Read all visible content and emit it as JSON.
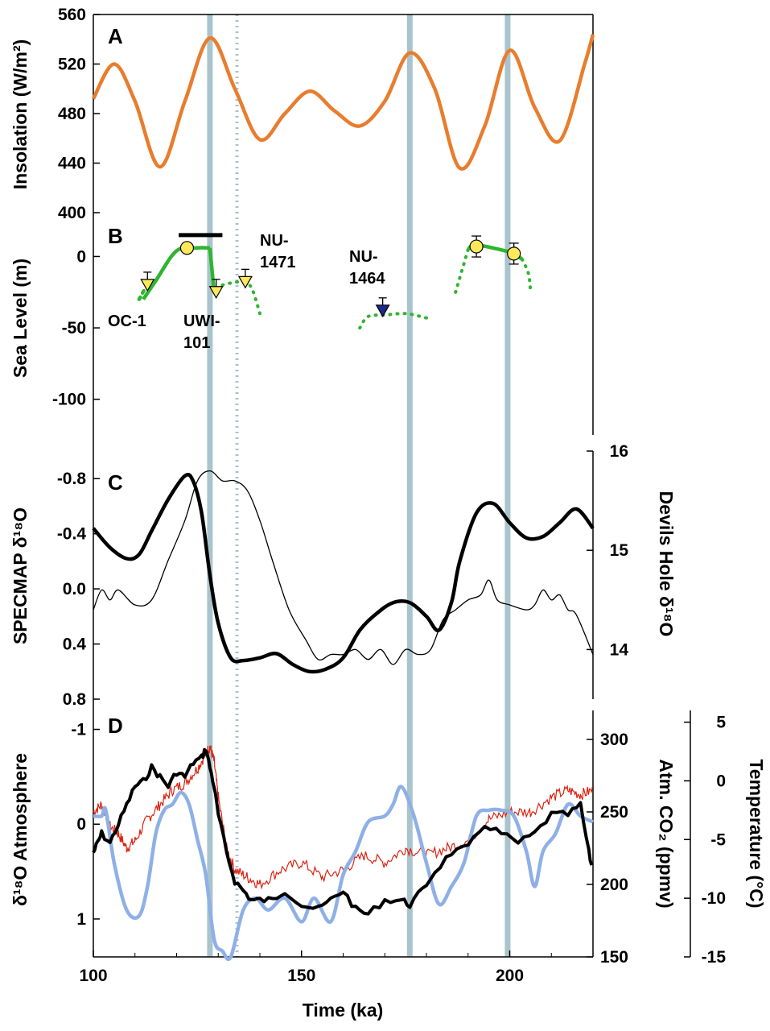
{
  "xaxis": {
    "label": "Time (ka)",
    "range": [
      100,
      220
    ],
    "ticks": [
      "100",
      "150",
      "200"
    ]
  },
  "vertical_lines": {
    "solid_ka": [
      128,
      176,
      199.5
    ],
    "dotted_ka": [
      134.5
    ],
    "color": "#a9c4cc"
  },
  "colors": {
    "insolation": "#e87d2e",
    "sea_level_curve": "#2fb52f",
    "marker_fill_yellow": "#ffe85a",
    "marker_fill_blue": "#1b2a8c",
    "co2": "#dd2211",
    "temperature": "#8fb0e6",
    "black": "#000000"
  },
  "panels": {
    "A": {
      "letter": "A",
      "ylabel": "Insolation (W/m²)",
      "yticks": [
        "560",
        "520",
        "480",
        "440",
        "400"
      ],
      "yrange": [
        400,
        560
      ]
    },
    "B": {
      "letter": "B",
      "ylabel": "Sea Level (m)",
      "yticks": [
        "0",
        "-50",
        "-100"
      ],
      "yrange": [
        -125,
        20
      ],
      "labels": {
        "oc1": "OC-1",
        "uwi1": "UWI-",
        "uwi2": "101",
        "nu1471a": "NU-",
        "nu1471b": "1471",
        "nu1464a": "NU-",
        "nu1464b": "1464"
      }
    },
    "C": {
      "letter": "C",
      "ylabel_left": "SPECMAP δ¹⁸O",
      "ylabel_right": "Devils Hole δ¹⁸O",
      "yticks_left": [
        "-0.8",
        "-0.4",
        "0.0",
        "0.4",
        "0.8"
      ],
      "yticks_right": [
        "16",
        "15",
        "14"
      ],
      "yrange_left": [
        -1.0,
        0.8
      ],
      "yrange_right": [
        13.5,
        16
      ]
    },
    "D": {
      "letter": "D",
      "ylabel_left": "δ¹⁸O Atmosphere",
      "ylabel_mid": "Atm. CO₂ (ppmv)",
      "ylabel_right": "Temperature (°C)",
      "yticks_left": [
        "-1",
        "0",
        "1"
      ],
      "yticks_mid": [
        "300",
        "250",
        "200",
        "150"
      ],
      "yticks_right": [
        "5",
        "0",
        "-5",
        "-10",
        "-15"
      ],
      "yrange_left": [
        -1.2,
        1.4
      ],
      "yrange_mid": [
        150,
        320
      ],
      "yrange_right": [
        -15,
        6
      ]
    }
  },
  "chart_data": [
    {
      "type": "line",
      "panel": "A",
      "ylabel": "Insolation (W/m²)",
      "ylim": [
        400,
        560
      ],
      "series": [
        {
          "x": [
            100,
            105,
            110,
            116,
            122,
            128,
            134,
            140,
            146,
            152,
            158,
            164,
            170,
            176,
            182,
            188,
            194,
            200,
            206,
            212,
            218,
            220
          ],
          "values": [
            492,
            520,
            490,
            437,
            490,
            541,
            500,
            459,
            480,
            498,
            482,
            470,
            490,
            529,
            500,
            436,
            470,
            531,
            485,
            458,
            520,
            544
          ]
        }
      ]
    },
    {
      "type": "scatter",
      "panel": "B",
      "ylabel": "Sea Level (m)",
      "ylim": [
        -125,
        20
      ],
      "series": [
        {
          "x": [
            112,
            115,
            120,
            125,
            128,
            129
          ],
          "values": [
            -30,
            -17,
            4,
            6,
            6,
            -25
          ]
        },
        {
          "x": [
            131,
            134,
            136,
            138,
            140
          ],
          "values": [
            -20,
            -18,
            -18,
            -22,
            -40
          ]
        },
        {
          "x": [
            164,
            166,
            170,
            175,
            180
          ],
          "values": [
            -50,
            -42,
            -41,
            -40,
            -43
          ]
        },
        {
          "x": [
            187,
            190,
            192,
            200,
            203,
            205
          ],
          "values": [
            -22,
            5,
            8,
            3,
            -2,
            -22
          ]
        },
        {
          "x": [
            113,
            129.5,
            136.5,
            169.5
          ],
          "values": [
            -20,
            -25,
            -18,
            -38
          ]
        },
        {
          "x": [
            122.5,
            192,
            201
          ],
          "values": [
            6,
            7,
            2
          ]
        }
      ]
    },
    {
      "type": "line",
      "panel": "C",
      "ylabel": "SPECMAP δ¹⁸O",
      "ylim": [
        -1.0,
        0.8
      ],
      "series": [
        {
          "x": [
            100,
            104,
            108,
            111,
            114,
            118,
            122,
            124,
            126,
            128,
            130,
            133,
            136,
            140,
            144,
            148,
            152,
            156,
            160,
            164,
            168,
            172,
            176,
            180,
            183,
            186,
            188,
            192,
            196,
            200,
            204,
            208,
            212,
            216,
            220
          ],
          "values": [
            -0.44,
            -0.3,
            -0.22,
            -0.25,
            -0.42,
            -0.65,
            -0.82,
            -0.78,
            -0.55,
            -0.1,
            0.25,
            0.5,
            0.52,
            0.5,
            0.47,
            0.55,
            0.6,
            0.58,
            0.5,
            0.3,
            0.18,
            0.1,
            0.1,
            0.2,
            0.3,
            0.1,
            -0.2,
            -0.55,
            -0.62,
            -0.48,
            -0.37,
            -0.38,
            -0.48,
            -0.58,
            -0.44
          ]
        },
        {
          "x": [
            100,
            102,
            104,
            106,
            110,
            114,
            118,
            122,
            125,
            128,
            131,
            134,
            137,
            140,
            143,
            147,
            151,
            154,
            157,
            160,
            163,
            166,
            169,
            172,
            175,
            178,
            181,
            184,
            187,
            190,
            193,
            195,
            197,
            200,
            204,
            206,
            208,
            210,
            212,
            214,
            216,
            220
          ],
          "values": [
            14.4,
            14.6,
            14.5,
            14.6,
            14.45,
            14.5,
            14.9,
            15.3,
            15.7,
            15.8,
            15.7,
            15.7,
            15.6,
            15.3,
            14.9,
            14.4,
            14.1,
            13.9,
            13.95,
            13.95,
            14.0,
            13.9,
            14.0,
            13.85,
            14.0,
            13.95,
            14.0,
            14.3,
            14.4,
            14.5,
            14.55,
            14.7,
            14.5,
            14.45,
            14.4,
            14.45,
            14.6,
            14.5,
            14.55,
            14.4,
            14.35,
            13.95
          ]
        }
      ]
    },
    {
      "type": "line",
      "panel": "D",
      "ylabel": "δ¹⁸O Atmosphere",
      "ylim": [
        -1.2,
        1.4
      ],
      "series": [
        {
          "x": [
            100,
            101,
            102,
            104,
            106,
            108,
            110,
            112,
            114,
            116,
            118,
            120,
            122,
            124,
            126,
            127,
            128,
            129,
            130,
            132,
            134,
            136,
            138,
            140,
            143,
            146,
            150,
            154,
            157,
            160,
            163,
            166,
            170,
            174,
            176,
            179,
            182,
            186,
            190,
            194,
            198,
            202,
            206,
            210,
            214,
            217,
            219,
            220
          ],
          "values": [
            0.3,
            0.2,
            0.1,
            0.2,
            0.0,
            -0.2,
            -0.4,
            -0.45,
            -0.6,
            -0.5,
            -0.4,
            -0.55,
            -0.5,
            -0.65,
            -0.7,
            -0.8,
            -0.6,
            -0.4,
            -0.1,
            0.3,
            0.6,
            0.7,
            0.8,
            0.8,
            0.8,
            0.7,
            0.85,
            0.9,
            0.8,
            0.7,
            0.9,
            0.95,
            0.8,
            0.8,
            0.85,
            0.7,
            0.5,
            0.3,
            0.25,
            0.0,
            0.1,
            0.2,
            0.1,
            -0.1,
            -0.1,
            -0.2,
            0.3,
            0.5
          ]
        },
        {
          "x": [
            100,
            102,
            104,
            106,
            108,
            110,
            113,
            116,
            119,
            122,
            125,
            127,
            128,
            129,
            130,
            132,
            134,
            137,
            140,
            145,
            150,
            155,
            160,
            165,
            170,
            175,
            180,
            185,
            190,
            195,
            200,
            205,
            210,
            214,
            217,
            220
          ],
          "values": [
            250,
            255,
            240,
            235,
            225,
            230,
            245,
            255,
            265,
            270,
            280,
            290,
            295,
            285,
            260,
            225,
            210,
            205,
            200,
            210,
            215,
            205,
            210,
            220,
            215,
            225,
            220,
            225,
            230,
            245,
            250,
            250,
            260,
            265,
            262,
            265
          ]
        },
        {
          "x": [
            100,
            102,
            103,
            105,
            108,
            111,
            113,
            115,
            117,
            119,
            121,
            123,
            125,
            127,
            129,
            131,
            133,
            136,
            139,
            142,
            146,
            150,
            153,
            157,
            160,
            163,
            166,
            170,
            172,
            174,
            177,
            180,
            183,
            186,
            189,
            192,
            195,
            198,
            201,
            204,
            206,
            208,
            211,
            214,
            217,
            220
          ],
          "values": [
            -3,
            -3,
            -2.5,
            -7,
            -11,
            -11.5,
            -9,
            -4.5,
            -2.5,
            -2,
            -1,
            -2,
            -5,
            -8,
            -13.5,
            -14.5,
            -15,
            -11,
            -10,
            -11,
            -10,
            -12,
            -10,
            -12,
            -8,
            -6,
            -3.5,
            -3,
            -2,
            -0.5,
            -3,
            -7,
            -10.5,
            -9,
            -7,
            -3,
            -2.5,
            -2.5,
            -3,
            -6,
            -9,
            -6,
            -4.5,
            -2,
            -3,
            -3.5
          ]
        }
      ]
    }
  ]
}
